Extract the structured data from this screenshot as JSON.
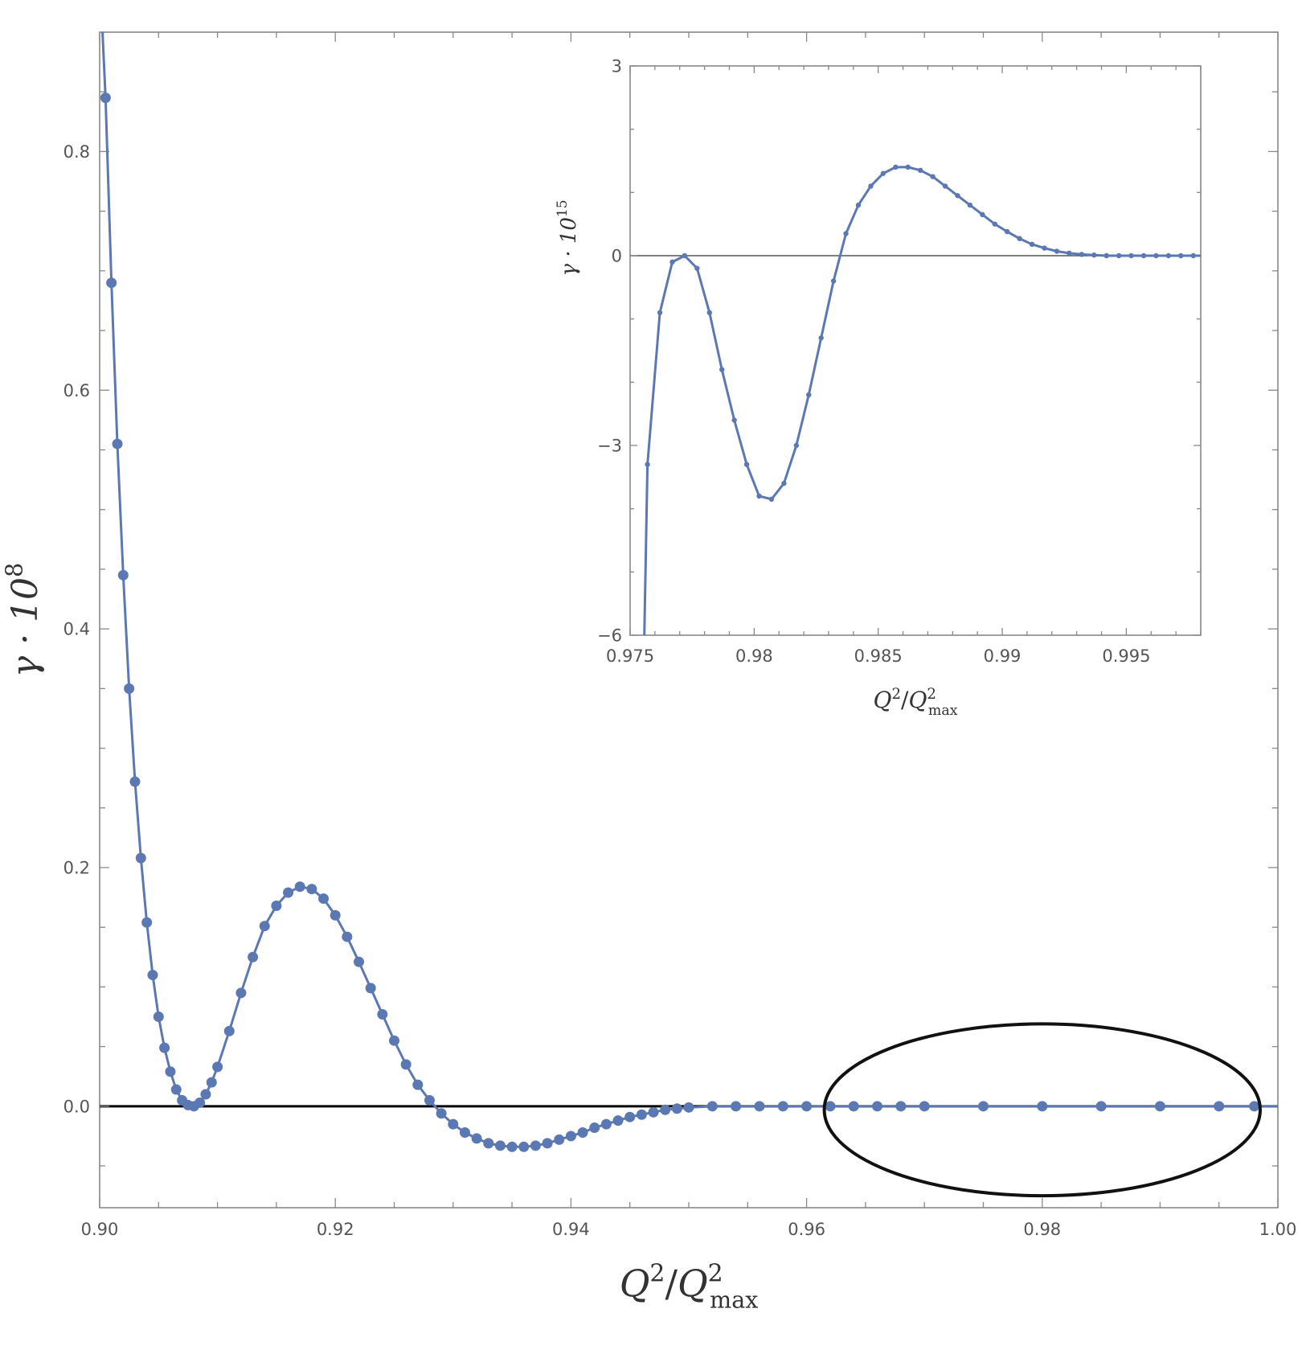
{
  "chart_data": [
    {
      "type": "line",
      "role": "main",
      "xlabel": {
        "base": "Q",
        "sup": "2",
        "sep": "/",
        "base2": "Q",
        "sup2": "2",
        "sub2": "max"
      },
      "ylabel": {
        "base": "γ · 10",
        "sup": "8"
      },
      "xlim": [
        0.9,
        1.0
      ],
      "ylim": [
        -0.085,
        0.9
      ],
      "xticks": [
        0.9,
        0.92,
        0.94,
        0.96,
        0.98,
        1.0
      ],
      "xtick_labels": [
        "0.90",
        "0.92",
        "0.94",
        "0.96",
        "0.98",
        "1.00"
      ],
      "yticks": [
        0.0,
        0.2,
        0.4,
        0.6,
        0.8
      ],
      "ytick_labels": [
        "0.0",
        "0.2",
        "0.4",
        "0.6",
        "0.8"
      ],
      "grid": false,
      "series": [
        {
          "color": "#5b78b3",
          "style": "line+markers",
          "x": [
            0.9005,
            0.901,
            0.9015,
            0.902,
            0.9025,
            0.903,
            0.9035,
            0.904,
            0.9045,
            0.905,
            0.9055,
            0.906,
            0.9065,
            0.907,
            0.9075,
            0.908,
            0.9085,
            0.909,
            0.9095,
            0.91,
            0.911,
            0.912,
            0.913,
            0.914,
            0.915,
            0.916,
            0.917,
            0.918,
            0.919,
            0.92,
            0.921,
            0.922,
            0.923,
            0.924,
            0.925,
            0.926,
            0.927,
            0.928,
            0.929,
            0.93,
            0.931,
            0.932,
            0.933,
            0.934,
            0.935,
            0.936,
            0.937,
            0.938,
            0.939,
            0.94,
            0.941,
            0.942,
            0.943,
            0.944,
            0.945,
            0.946,
            0.947,
            0.948,
            0.949,
            0.95,
            0.952,
            0.954,
            0.956,
            0.958,
            0.96,
            0.962,
            0.964,
            0.966,
            0.968,
            0.97,
            0.975,
            0.98,
            0.985,
            0.99,
            0.995,
            0.998
          ],
          "y": [
            0.845,
            0.69,
            0.555,
            0.445,
            0.35,
            0.272,
            0.208,
            0.154,
            0.11,
            0.075,
            0.049,
            0.029,
            0.014,
            0.005,
            0.001,
            0.0,
            0.003,
            0.01,
            0.02,
            0.033,
            0.063,
            0.095,
            0.125,
            0.151,
            0.168,
            0.179,
            0.184,
            0.182,
            0.174,
            0.16,
            0.142,
            0.121,
            0.099,
            0.077,
            0.055,
            0.035,
            0.018,
            0.005,
            -0.006,
            -0.015,
            -0.022,
            -0.027,
            -0.031,
            -0.033,
            -0.034,
            -0.034,
            -0.033,
            -0.031,
            -0.028,
            -0.025,
            -0.022,
            -0.018,
            -0.015,
            -0.012,
            -0.009,
            -0.007,
            -0.005,
            -0.003,
            -0.002,
            -0.001,
            0.0,
            0.0,
            0.0,
            0.0,
            0.0,
            0.0,
            0.0,
            0.0,
            0.0,
            0.0,
            0.0,
            0.0,
            0.0,
            0.0,
            0.0,
            0.0
          ]
        }
      ],
      "annotations": [
        {
          "type": "ellipse",
          "note": "highlighted region",
          "x_range": [
            0.9615,
            0.9985
          ],
          "y_range": [
            -0.075,
            0.069
          ]
        }
      ]
    },
    {
      "type": "line",
      "role": "inset",
      "xlabel": {
        "base": "Q",
        "sup": "2",
        "sep": "/",
        "base2": "Q",
        "sup2": "2",
        "sub2": "max"
      },
      "ylabel": {
        "base": "γ · 10",
        "sup": "15"
      },
      "xlim": [
        0.975,
        0.998
      ],
      "ylim": [
        -6,
        3
      ],
      "xticks": [
        0.975,
        0.98,
        0.985,
        0.99,
        0.995
      ],
      "xtick_labels": [
        "0.975",
        "0.98",
        "0.985",
        "0.99",
        "0.995"
      ],
      "yticks": [
        3,
        0,
        -3,
        -6
      ],
      "ytick_labels": [
        "3",
        "0",
        "−3",
        "−6"
      ],
      "grid": false,
      "series": [
        {
          "color": "#5b78b3",
          "style": "line+markers",
          "x": [
            0.9757,
            0.9762,
            0.9767,
            0.9772,
            0.9777,
            0.9782,
            0.9787,
            0.9792,
            0.9797,
            0.9802,
            0.9807,
            0.9812,
            0.9817,
            0.9822,
            0.9827,
            0.9832,
            0.9837,
            0.9842,
            0.9847,
            0.9852,
            0.9857,
            0.9862,
            0.9867,
            0.9872,
            0.9877,
            0.9882,
            0.9887,
            0.9892,
            0.9897,
            0.9902,
            0.9907,
            0.9912,
            0.9917,
            0.9922,
            0.9927,
            0.9932,
            0.9937,
            0.9942,
            0.9947,
            0.9952,
            0.9957,
            0.9962,
            0.9967,
            0.9972,
            0.9977
          ],
          "y": [
            -3.3,
            -0.9,
            -0.1,
            0.0,
            -0.2,
            -0.9,
            -1.8,
            -2.6,
            -3.3,
            -3.8,
            -3.85,
            -3.6,
            -3.0,
            -2.2,
            -1.3,
            -0.4,
            0.35,
            0.8,
            1.1,
            1.3,
            1.4,
            1.4,
            1.35,
            1.25,
            1.1,
            0.95,
            0.8,
            0.65,
            0.5,
            0.38,
            0.27,
            0.18,
            0.12,
            0.07,
            0.04,
            0.02,
            0.01,
            0.0,
            0.0,
            0.0,
            0.0,
            0.0,
            0.0,
            0.0,
            0.0
          ]
        }
      ]
    }
  ]
}
